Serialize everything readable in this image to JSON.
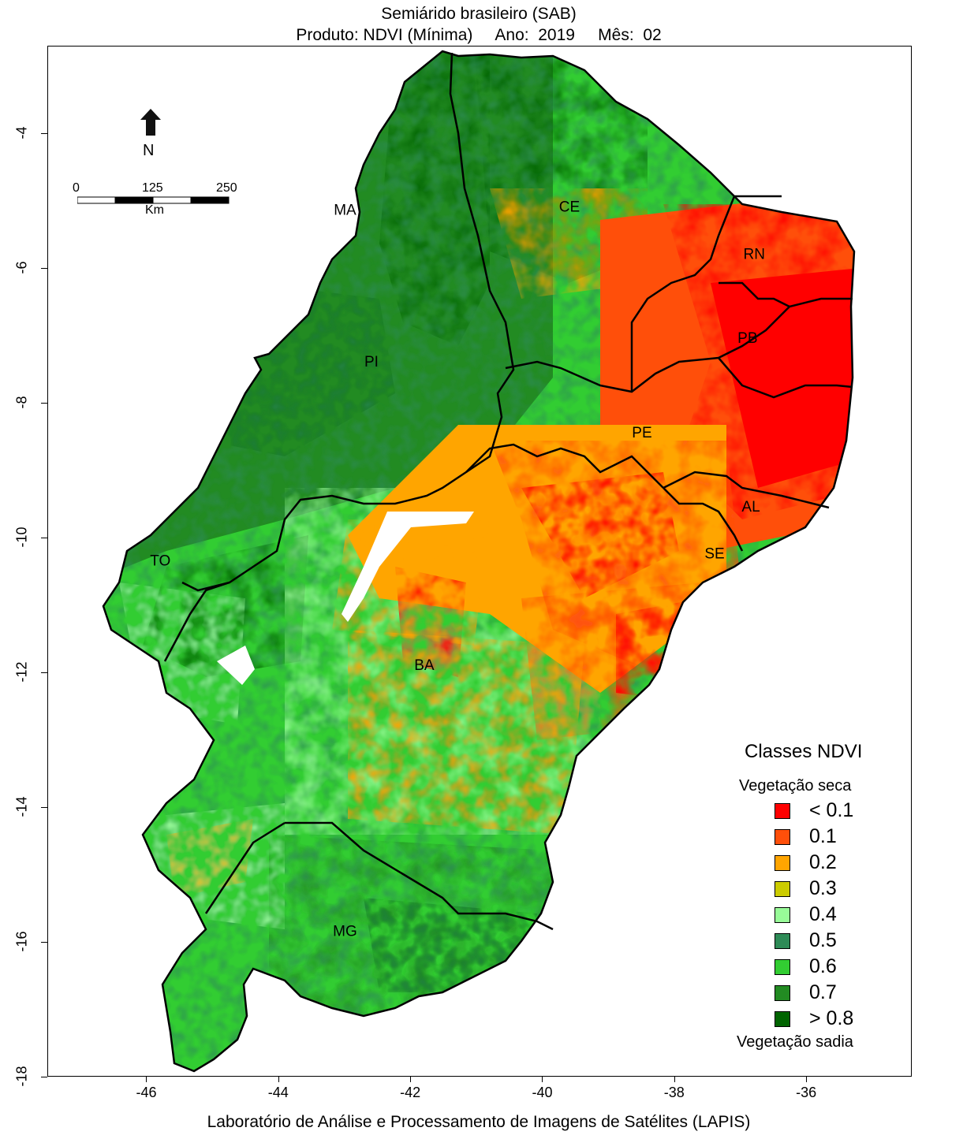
{
  "title": {
    "line1": "Semiárido brasileiro (SAB)",
    "line2": "Produto: NDVI (Mínima)     Ano:  2019     Mês:  02"
  },
  "footer": "Laboratório de Análise e Processamento de Imagens de Satélites (LAPIS)",
  "axes": {
    "xticks": [
      "-46",
      "-44",
      "-42",
      "-40",
      "-38",
      "-36"
    ],
    "yticks": [
      "-4",
      "-6",
      "-8",
      "-10",
      "-12",
      "-14",
      "-16",
      "-18"
    ],
    "xlim": [
      -47.5,
      -34.4
    ],
    "ylim": [
      -18.0,
      -2.7
    ]
  },
  "north_arrow": {
    "label": "N"
  },
  "scale_bar": {
    "labels": [
      "0",
      "125",
      "250"
    ],
    "unit": "Km"
  },
  "states": [
    {
      "name": "MA",
      "lon": -43.0,
      "lat": -5.2
    },
    {
      "name": "CE",
      "lon": -39.6,
      "lat": -5.15
    },
    {
      "name": "RN",
      "lon": -36.8,
      "lat": -5.85
    },
    {
      "name": "PB",
      "lon": -36.9,
      "lat": -7.1
    },
    {
      "name": "PI",
      "lon": -42.6,
      "lat": -7.45
    },
    {
      "name": "PE",
      "lon": -38.5,
      "lat": -8.5
    },
    {
      "name": "AL",
      "lon": -36.85,
      "lat": -9.6
    },
    {
      "name": "SE",
      "lon": -37.4,
      "lat": -10.3
    },
    {
      "name": "TO",
      "lon": -45.8,
      "lat": -10.4
    },
    {
      "name": "BA",
      "lon": -41.8,
      "lat": -11.95
    },
    {
      "name": "MG",
      "lon": -43.0,
      "lat": -15.9
    }
  ],
  "legend": {
    "title": "Classes NDVI",
    "top_note": "Vegetação seca",
    "bottom_note": "Vegetação sadia",
    "classes": [
      {
        "label": "< 0.1",
        "color": "#ff0000"
      },
      {
        "label": "0.1",
        "color": "#ff4f0a"
      },
      {
        "label": "0.2",
        "color": "#ffa500"
      },
      {
        "label": "0.3",
        "color": "#cccc00"
      },
      {
        "label": "0.4",
        "color": "#98fb98"
      },
      {
        "label": "0.5",
        "color": "#2e8b57"
      },
      {
        "label": "0.6",
        "color": "#32cd32"
      },
      {
        "label": "0.7",
        "color": "#228b22"
      },
      {
        "label": "> 0.8",
        "color": "#006400"
      }
    ]
  }
}
